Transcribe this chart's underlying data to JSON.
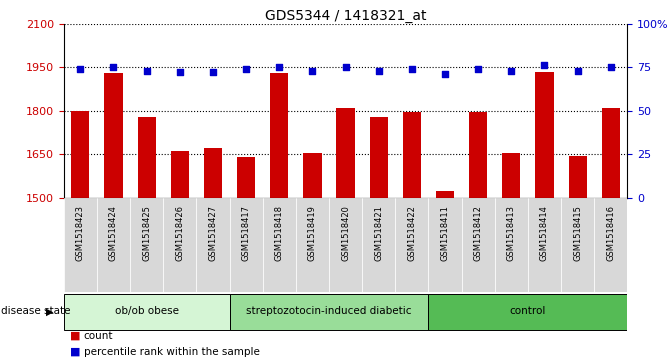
{
  "title": "GDS5344 / 1418321_at",
  "samples": [
    "GSM1518423",
    "GSM1518424",
    "GSM1518425",
    "GSM1518426",
    "GSM1518427",
    "GSM1518417",
    "GSM1518418",
    "GSM1518419",
    "GSM1518420",
    "GSM1518421",
    "GSM1518422",
    "GSM1518411",
    "GSM1518412",
    "GSM1518413",
    "GSM1518414",
    "GSM1518415",
    "GSM1518416"
  ],
  "counts": [
    1800,
    1930,
    1780,
    1660,
    1670,
    1640,
    1930,
    1655,
    1810,
    1780,
    1795,
    1525,
    1795,
    1655,
    1935,
    1645,
    1810
  ],
  "percentiles": [
    74,
    75,
    73,
    72,
    72,
    74,
    75,
    73,
    75,
    73,
    74,
    71,
    74,
    73,
    76,
    73,
    75
  ],
  "groups": [
    {
      "label": "ob/ob obese",
      "start": 0,
      "end": 5,
      "color": "#d5f5d5"
    },
    {
      "label": "streptozotocin-induced diabetic",
      "start": 5,
      "end": 11,
      "color": "#99dd99"
    },
    {
      "label": "control",
      "start": 11,
      "end": 17,
      "color": "#55bb55"
    }
  ],
  "bar_color": "#cc0000",
  "dot_color": "#0000cc",
  "ylim_left": [
    1500,
    2100
  ],
  "ylim_right": [
    0,
    100
  ],
  "yticks_left": [
    1500,
    1650,
    1800,
    1950,
    2100
  ],
  "yticks_right": [
    0,
    25,
    50,
    75,
    100
  ],
  "background_color": "#ffffff",
  "plot_bg": "#ffffff",
  "tick_label_color_left": "#cc0000",
  "tick_label_color_right": "#0000cc",
  "title_fontsize": 10,
  "legend_items": [
    "count",
    "percentile rank within the sample"
  ],
  "disease_state_label": "disease state"
}
